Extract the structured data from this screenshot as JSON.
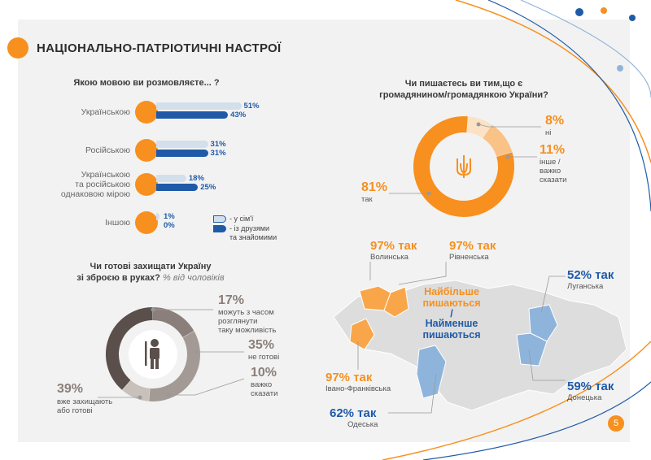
{
  "header": {
    "title": "НАЦІОНАЛЬНО-ПАТРІОТИЧНІ НАСТРОЇ"
  },
  "page_number": "5",
  "language": {
    "question": "Якою мовою ви розмовляєте... ?",
    "rows": [
      {
        "label": "Українською",
        "family": "51%",
        "friends": "43%"
      },
      {
        "label": "Російською",
        "family": "31%",
        "friends": "31%"
      },
      {
        "label": "Українською\nта російською\nоднаковою мірою",
        "family": "18%",
        "friends": "25%"
      },
      {
        "label": "Іншою",
        "family": "1%",
        "friends": "0%"
      }
    ],
    "legend": {
      "family": "- у сім'ї",
      "friends": "- із друзями\nта знайомими"
    }
  },
  "citizenship": {
    "question": "Чи пишаєтесь ви тим,що є\nгромадянином/громадянкою України?",
    "yes": {
      "value": "81%",
      "label": "так"
    },
    "no": {
      "value": "8%",
      "label": "ні"
    },
    "other": {
      "value": "11%",
      "label": "інше /\nважко\nсказати"
    }
  },
  "defend": {
    "question": "Чи готові захищати Україну\nзі зброєю в руках?",
    "question_note": "% від чоловіків",
    "maybe": {
      "value": "17%",
      "label": "можуть з часом\nрозглянути\nтаку можливість"
    },
    "not_ready": {
      "value": "35%",
      "label": "не готові"
    },
    "hard": {
      "value": "10%",
      "label": "важко\nсказати"
    },
    "ready": {
      "value": "39%",
      "label": "вже захищають\nабо готові"
    }
  },
  "map": {
    "center_most": "Найбільше\nпишаються",
    "center_slash": "/",
    "center_least": "Найменше\nпишаються",
    "regions": [
      {
        "value": "97% так",
        "name": "Волинська"
      },
      {
        "value": "97% так",
        "name": "Рівненська"
      },
      {
        "value": "97% так",
        "name": "Івано-Франківська"
      },
      {
        "value": "52% так",
        "name": "Луганська"
      },
      {
        "value": "59% так",
        "name": "Донецька"
      },
      {
        "value": "62% так",
        "name": "Одеська"
      }
    ]
  },
  "colors": {
    "orange": "#f7901e",
    "blue": "#1f5aa8",
    "light_blue": "#d4dfec",
    "dark_grey": "#5a4f4a",
    "grey": "#8a7f7a",
    "light_grey": "#c8c0bb",
    "map_grey": "#dddddd",
    "map_orange": "#f9a64a",
    "map_blue": "#8fb4dc"
  },
  "chart_data": [
    {
      "type": "bar",
      "title": "Якою мовою ви розмовляєте... ?",
      "categories": [
        "Українською",
        "Російською",
        "Українською та російською однаковою мірою",
        "Іншою"
      ],
      "series": [
        {
          "name": "у сім'ї",
          "values": [
            51,
            31,
            18,
            1
          ]
        },
        {
          "name": "із друзями та знайомими",
          "values": [
            43,
            31,
            25,
            0
          ]
        }
      ]
    },
    {
      "type": "pie",
      "title": "Чи пишаєтесь ви тим,що є громадянином/громадянкою України?",
      "categories": [
        "так",
        "ні",
        "інше / важко сказати"
      ],
      "values": [
        81,
        8,
        11
      ]
    },
    {
      "type": "pie",
      "title": "Чи готові захищати Україну зі зброєю в руках? % від чоловіків",
      "categories": [
        "можуть з часом розглянути таку можливість",
        "не готові",
        "важко сказати",
        "вже захищають або готові"
      ],
      "values": [
        17,
        35,
        10,
        39
      ]
    }
  ]
}
